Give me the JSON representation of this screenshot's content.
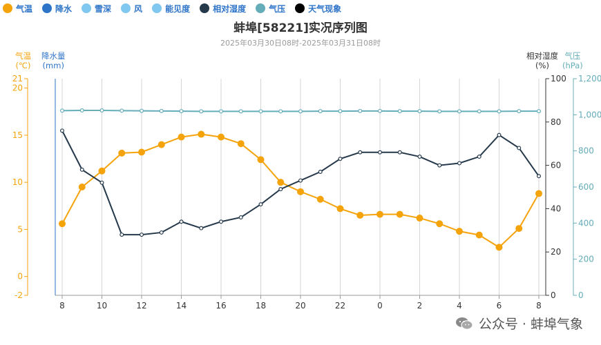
{
  "legend": [
    {
      "label": "气温",
      "color": "#F5A30A"
    },
    {
      "label": "降水",
      "color": "#2E74C8"
    },
    {
      "label": "雪深",
      "color": "#80C8F0"
    },
    {
      "label": "风",
      "color": "#80C8F0"
    },
    {
      "label": "能见度",
      "color": "#80C8F0"
    },
    {
      "label": "相对湿度",
      "color": "#25394B"
    },
    {
      "label": "气压",
      "color": "#64ADB9"
    },
    {
      "label": "天气现象",
      "color": "#000000"
    }
  ],
  "header": {
    "title": "蚌埠[58221]实况序列图",
    "subtitle": "2025年03月30日08时-2025年03月31日08时"
  },
  "axes": {
    "temp_label": "气温",
    "temp_unit": "(℃)",
    "precip_label": "降水量",
    "precip_unit": "(mm)",
    "rh_label": "相对湿度",
    "rh_unit": "(%)",
    "pres_label": "气压",
    "pres_unit": "(hPa)"
  },
  "watermark": {
    "text": "公众号 · 蚌埠气象",
    "icon": "wechat-icon"
  },
  "chart_data": {
    "type": "line",
    "x": [
      "8",
      "9",
      "10",
      "11",
      "12",
      "13",
      "14",
      "15",
      "16",
      "17",
      "18",
      "19",
      "20",
      "21",
      "22",
      "23",
      "0",
      "1",
      "2",
      "3",
      "4",
      "5",
      "6",
      "7",
      "8"
    ],
    "x_tick_labels": [
      "8",
      "10",
      "12",
      "14",
      "16",
      "18",
      "20",
      "22",
      "0",
      "2",
      "4",
      "6",
      "8"
    ],
    "series": [
      {
        "name": "气温",
        "axis": "left",
        "color": "#F5A30A",
        "values": [
          5.6,
          9.5,
          11.2,
          13.1,
          13.2,
          14.0,
          14.8,
          15.1,
          14.8,
          14.1,
          12.4,
          10.0,
          9.0,
          8.2,
          7.2,
          6.5,
          6.6,
          6.6,
          6.2,
          5.6,
          4.8,
          4.4,
          3.1,
          5.1,
          8.8
        ]
      },
      {
        "name": "相对湿度",
        "axis": "right",
        "color": "#25394B",
        "values": [
          76,
          58,
          52,
          28,
          28,
          29,
          34,
          31,
          34,
          36,
          42,
          49,
          53,
          57,
          63,
          66,
          66,
          66,
          64,
          60,
          61,
          64,
          74,
          68,
          55
        ]
      },
      {
        "name": "气压",
        "axis": "right2",
        "color": "#64ADB9",
        "values": [
          1023,
          1024,
          1024,
          1023,
          1022,
          1021,
          1020,
          1019,
          1019,
          1019,
          1019,
          1019,
          1019,
          1020,
          1020,
          1021,
          1021,
          1020,
          1020,
          1019,
          1019,
          1019,
          1019,
          1020,
          1020
        ]
      }
    ],
    "y_left": {
      "ticks": [
        -2,
        0,
        5,
        10,
        15,
        20,
        21
      ],
      "range": [
        -2,
        21
      ]
    },
    "y_right": {
      "ticks": [
        0,
        20,
        40,
        60,
        80,
        100
      ],
      "range": [
        0,
        100
      ]
    },
    "y_right2": {
      "ticks": [
        0,
        200,
        400,
        600,
        800,
        "1,000",
        "1,200"
      ],
      "range": [
        0,
        1200
      ]
    },
    "grid": "vertical"
  }
}
